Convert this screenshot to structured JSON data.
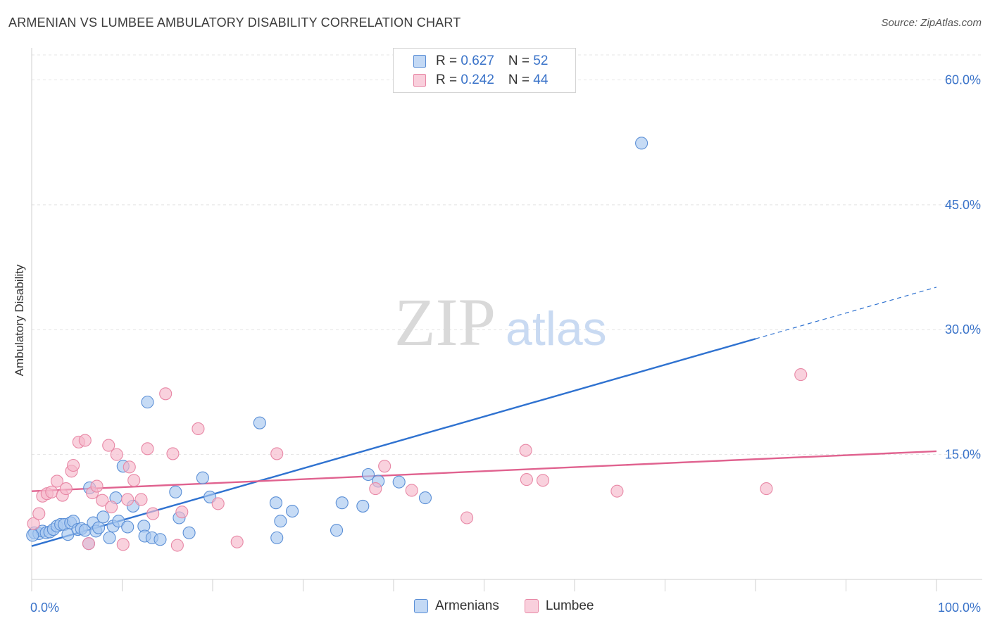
{
  "header": {
    "title": "ARMENIAN VS LUMBEE AMBULATORY DISABILITY CORRELATION CHART",
    "source": "Source: ZipAtlas.com"
  },
  "legend": {
    "rows": [
      {
        "r_label": "R = ",
        "r_value": "0.627",
        "n_label": "N = ",
        "n_value": "52",
        "color": "#a8c8f0"
      },
      {
        "r_label": "R = ",
        "r_value": "0.242",
        "n_label": "N = ",
        "n_value": "44",
        "color": "#f6b8cb"
      }
    ]
  },
  "bottom_legend": {
    "items": [
      "Armenians",
      "Lumbee"
    ]
  },
  "watermark": {
    "zip": "ZIP",
    "atlas": "atlas"
  },
  "chart_data": {
    "type": "scatter",
    "title": "ARMENIAN VS LUMBEE AMBULATORY DISABILITY CORRELATION CHART",
    "xlabel": "",
    "ylabel": "Ambulatory Disability",
    "xlim": [
      0,
      100
    ],
    "ylim": [
      0,
      63
    ],
    "x_tick_labels": [
      "0.0%",
      "100.0%"
    ],
    "y_ticks": [
      15,
      30,
      45,
      60
    ],
    "y_tick_labels": [
      "15.0%",
      "30.0%",
      "45.0%",
      "60.0%"
    ],
    "grid": true,
    "legend_position": "top-center",
    "series": [
      {
        "name": "Armenians",
        "color": "#a8c8f0",
        "stroke": "#5b8fd6",
        "trend_color": "#2f72d0",
        "trend": {
          "x0": 0,
          "y0": 4.0,
          "x1": 80,
          "y1": 28.9,
          "dash_to_x": 100,
          "dash_to_y": 35.1
        },
        "points": [
          [
            0.3,
            5.6
          ],
          [
            0.8,
            5.5
          ],
          [
            1.2,
            5.8
          ],
          [
            1.6,
            5.6
          ],
          [
            2,
            5.7
          ],
          [
            2.4,
            6
          ],
          [
            2.8,
            6.4
          ],
          [
            3.2,
            6.6
          ],
          [
            3.6,
            6.6
          ],
          [
            4,
            5.4
          ],
          [
            4.3,
            6.8
          ],
          [
            4.6,
            7
          ],
          [
            5.1,
            6
          ],
          [
            5.5,
            6.1
          ],
          [
            5.9,
            5.9
          ],
          [
            6.3,
            4.3
          ],
          [
            6.4,
            11
          ],
          [
            6.8,
            6.8
          ],
          [
            7.1,
            5.8
          ],
          [
            7.4,
            6.2
          ],
          [
            7.9,
            7.5
          ],
          [
            8.6,
            5
          ],
          [
            9,
            6.4
          ],
          [
            9.3,
            9.8
          ],
          [
            9.6,
            7
          ],
          [
            10.1,
            13.6
          ],
          [
            10.6,
            6.3
          ],
          [
            11.2,
            8.8
          ],
          [
            12.4,
            6.4
          ],
          [
            12.5,
            5.2
          ],
          [
            12.8,
            21.3
          ],
          [
            13.3,
            5
          ],
          [
            14.2,
            4.8
          ],
          [
            15.9,
            10.5
          ],
          [
            16.3,
            7.4
          ],
          [
            17.4,
            5.6
          ],
          [
            18.9,
            12.2
          ],
          [
            19.7,
            9.9
          ],
          [
            25.2,
            18.8
          ],
          [
            27,
            9.2
          ],
          [
            27.1,
            5
          ],
          [
            27.5,
            7
          ],
          [
            28.8,
            8.2
          ],
          [
            33.7,
            5.9
          ],
          [
            34.3,
            9.2
          ],
          [
            36.6,
            8.8
          ],
          [
            37.2,
            12.6
          ],
          [
            38.3,
            11.8
          ],
          [
            40.6,
            11.7
          ],
          [
            43.5,
            9.8
          ],
          [
            67.4,
            52.4
          ],
          [
            0.1,
            5.3
          ]
        ]
      },
      {
        "name": "Lumbee",
        "color": "#f6b8cb",
        "stroke": "#e888a6",
        "trend_color": "#e0628f",
        "trend": {
          "x0": 0,
          "y0": 10.6,
          "x1": 100,
          "y1": 15.4
        },
        "points": [
          [
            0.2,
            6.7
          ],
          [
            0.8,
            7.9
          ],
          [
            1.2,
            10
          ],
          [
            1.7,
            10.3
          ],
          [
            2.2,
            10.5
          ],
          [
            2.8,
            11.8
          ],
          [
            3.4,
            10.1
          ],
          [
            3.8,
            10.9
          ],
          [
            4.4,
            13
          ],
          [
            4.6,
            13.7
          ],
          [
            5.2,
            16.5
          ],
          [
            5.9,
            16.7
          ],
          [
            6.3,
            4.3
          ],
          [
            6.7,
            10.4
          ],
          [
            7.2,
            11.2
          ],
          [
            7.8,
            9.5
          ],
          [
            8.5,
            16.1
          ],
          [
            8.8,
            8.7
          ],
          [
            9.4,
            15
          ],
          [
            10.1,
            4.2
          ],
          [
            10.6,
            9.6
          ],
          [
            10.8,
            13.5
          ],
          [
            11.3,
            11.9
          ],
          [
            12.1,
            9.6
          ],
          [
            12.8,
            15.7
          ],
          [
            13.4,
            7.9
          ],
          [
            14.8,
            22.3
          ],
          [
            15.6,
            15.1
          ],
          [
            16.1,
            4.1
          ],
          [
            16.6,
            8.1
          ],
          [
            18.4,
            18.1
          ],
          [
            20.6,
            9.1
          ],
          [
            22.7,
            4.5
          ],
          [
            27.1,
            15.1
          ],
          [
            38,
            10.9
          ],
          [
            39,
            13.6
          ],
          [
            42,
            10.7
          ],
          [
            48.1,
            7.4
          ],
          [
            54.6,
            15.5
          ],
          [
            54.7,
            12
          ],
          [
            56.5,
            11.9
          ],
          [
            64.7,
            10.6
          ],
          [
            81.2,
            10.9
          ],
          [
            85,
            24.6
          ]
        ]
      }
    ]
  }
}
